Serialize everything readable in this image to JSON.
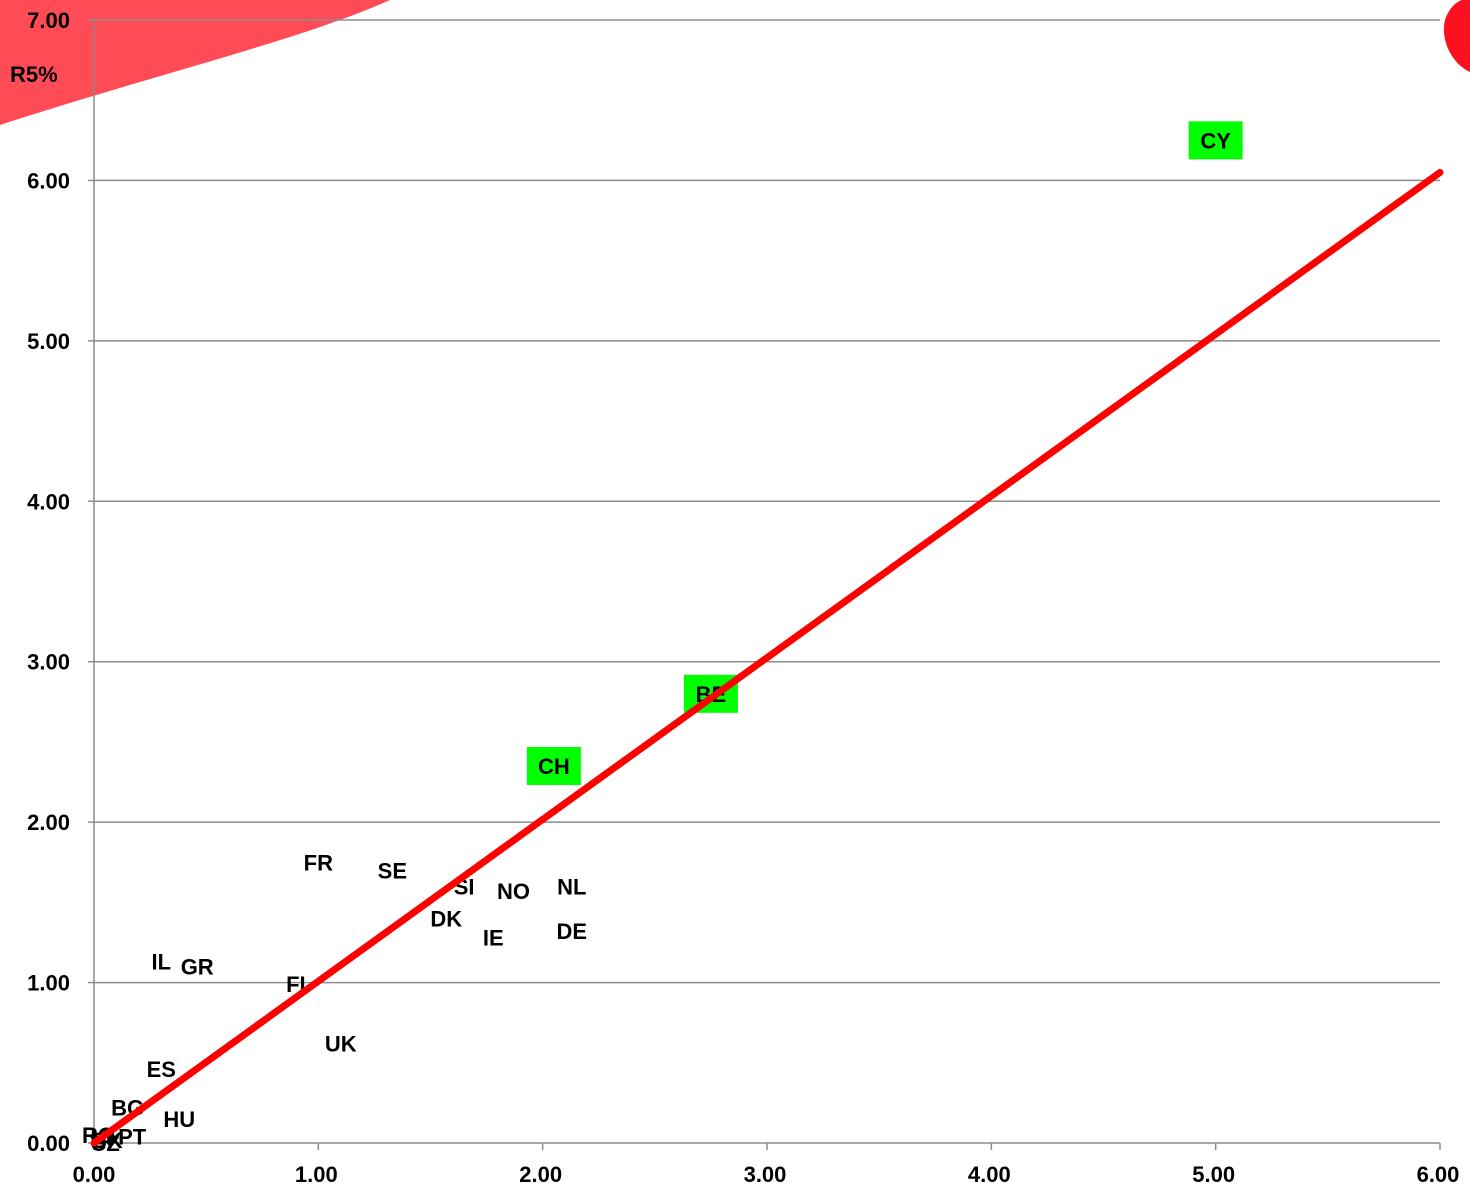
{
  "chart_data": {
    "type": "scatter",
    "xlim": [
      0,
      6
    ],
    "ylim": [
      0,
      7
    ],
    "xticks": [
      "0.00",
      "1.00",
      "2.00",
      "3.00",
      "4.00",
      "5.00",
      "6.00"
    ],
    "yticks": [
      "0.00",
      "1.00",
      "2.00",
      "3.00",
      "4.00",
      "5.00",
      "6.00",
      "7.00"
    ],
    "ylabel": "R5%",
    "grid": "horizontal",
    "highlight_color": "#00ff00",
    "line_color": "#ff0000",
    "reference_line": {
      "x": [
        0,
        6
      ],
      "y": [
        0,
        6.05
      ]
    },
    "points": [
      {
        "label": "CY",
        "x": 5.0,
        "y": 6.25,
        "highlight": true
      },
      {
        "label": "BE",
        "x": 2.75,
        "y": 2.8,
        "highlight": true
      },
      {
        "label": "CH",
        "x": 2.05,
        "y": 2.35,
        "highlight": true
      },
      {
        "label": "FR",
        "x": 1.0,
        "y": 1.75,
        "highlight": false
      },
      {
        "label": "SE",
        "x": 1.33,
        "y": 1.7,
        "highlight": false
      },
      {
        "label": "SI",
        "x": 1.65,
        "y": 1.6,
        "highlight": false
      },
      {
        "label": "NO",
        "x": 1.87,
        "y": 1.57,
        "highlight": false
      },
      {
        "label": "NL",
        "x": 2.13,
        "y": 1.6,
        "highlight": false
      },
      {
        "label": "DK",
        "x": 1.57,
        "y": 1.4,
        "highlight": false
      },
      {
        "label": "IE",
        "x": 1.78,
        "y": 1.28,
        "highlight": false
      },
      {
        "label": "DE",
        "x": 2.13,
        "y": 1.32,
        "highlight": false
      },
      {
        "label": "IL",
        "x": 0.3,
        "y": 1.13,
        "highlight": false
      },
      {
        "label": "GR",
        "x": 0.46,
        "y": 1.1,
        "highlight": false
      },
      {
        "label": "FI",
        "x": 0.9,
        "y": 0.99,
        "highlight": false
      },
      {
        "label": "UK",
        "x": 1.1,
        "y": 0.62,
        "highlight": false
      },
      {
        "label": "ES",
        "x": 0.3,
        "y": 0.46,
        "highlight": false
      },
      {
        "label": "BG",
        "x": 0.15,
        "y": 0.22,
        "highlight": false
      },
      {
        "label": "HU",
        "x": 0.38,
        "y": 0.15,
        "highlight": false
      },
      {
        "label": "PT",
        "x": 0.17,
        "y": 0.04,
        "highlight": false
      },
      {
        "label": "RO",
        "x": 0.02,
        "y": 0.05,
        "highlight": false
      },
      {
        "label": "LT",
        "x": 0.04,
        "y": 0.04,
        "highlight": false
      },
      {
        "label": "SK",
        "x": 0.06,
        "y": 0.02,
        "highlight": false
      },
      {
        "label": "CZ",
        "x": 0.05,
        "y": 0.0,
        "highlight": false
      }
    ]
  }
}
